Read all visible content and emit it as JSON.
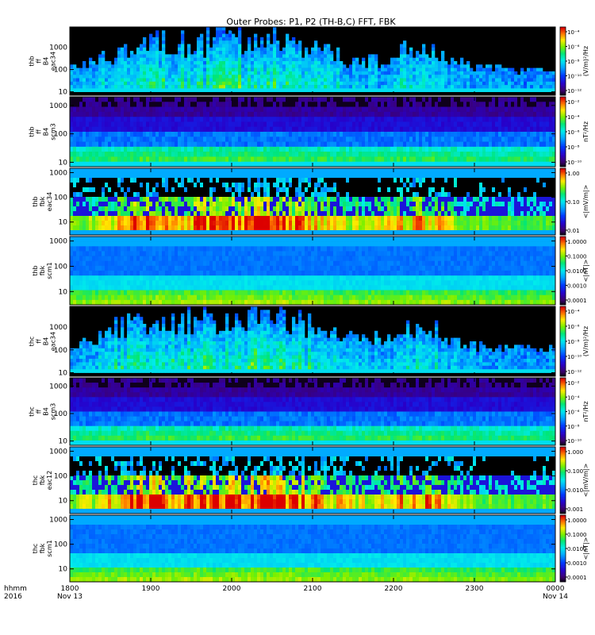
{
  "chart_data": {
    "type": "heatmap",
    "title": "Outer Probes: P1, P2 (TH-B,C) FFT, FBK",
    "x_axis": {
      "range_hhmm": [
        "1800",
        "2400"
      ],
      "tick_labels": [
        "1800",
        "1900",
        "2000",
        "2100",
        "2200",
        "2300",
        "0000"
      ],
      "date_labels": [
        {
          "hhmm": "1800",
          "label": "Nov 13"
        },
        {
          "hhmm": "0000",
          "label": "Nov 14"
        }
      ],
      "corner_label_1": "hhmm",
      "corner_label_2": "2016"
    },
    "panels": [
      {
        "id": "thb-ffp-eac34",
        "ylabel": [
          "thb",
          "ff",
          "B4",
          "eac34"
        ],
        "yticks": [
          "1000",
          "100",
          "10"
        ],
        "yscale": "log",
        "ylim": [
          7,
          8000
        ],
        "cbar_unit": "(V/m)²/Hz",
        "cbar_ticks": [
          "10⁻⁴",
          "10⁻⁶",
          "10⁻⁸",
          "10⁻¹⁰",
          "10⁻¹²"
        ],
        "colormap": "rainbow",
        "pattern": "efft",
        "activity": 0.45
      },
      {
        "id": "thb-ffp-scm3",
        "ylabel": [
          "thb",
          "ff",
          "B4",
          "scm3"
        ],
        "yticks": [
          "1000",
          "100",
          "10"
        ],
        "yscale": "log",
        "ylim": [
          7,
          2000
        ],
        "cbar_unit": "nT²/Hz",
        "cbar_ticks": [
          "10⁻²",
          "10⁻⁴",
          "10⁻⁶",
          "10⁻⁸",
          "10⁻¹⁰"
        ],
        "colormap": "rainbow",
        "pattern": "bfft",
        "activity": 0.3
      },
      {
        "id": "thb-fbk-eac34",
        "ylabel": [
          "thb",
          "fbk",
          "eac34"
        ],
        "yticks": [
          "1000",
          "100",
          "10"
        ],
        "yscale": "log",
        "ylim": [
          3,
          1500
        ],
        "cbar_unit": "<|mV/m|>",
        "cbar_ticks": [
          "1.00",
          "0.10",
          "0.01"
        ],
        "colormap": "rainbow",
        "pattern": "efbk",
        "activity": 0.5
      },
      {
        "id": "thb-fbk-scm1",
        "ylabel": [
          "thb",
          "fbk",
          "scm1"
        ],
        "yticks": [
          "1000",
          "100",
          "10"
        ],
        "yscale": "log",
        "ylim": [
          3,
          1500
        ],
        "cbar_unit": "<|nT|>",
        "cbar_ticks": [
          "1.0000",
          "0.1000",
          "0.0100",
          "0.0010",
          "0.0001"
        ],
        "colormap": "rainbow",
        "pattern": "bfbk",
        "activity": 0.25
      },
      {
        "id": "thc-ffp-eac34",
        "ylabel": [
          "thc",
          "ff",
          "B4",
          "eac34"
        ],
        "yticks": [
          "1000",
          "100",
          "10"
        ],
        "yscale": "log",
        "ylim": [
          7,
          8000
        ],
        "cbar_unit": "(V/m)²/Hz",
        "cbar_ticks": [
          "10⁻⁴",
          "10⁻⁶",
          "10⁻⁸",
          "10⁻¹⁰",
          "10⁻¹²"
        ],
        "colormap": "rainbow",
        "pattern": "efft",
        "activity": 0.5
      },
      {
        "id": "thc-ffp-scm3",
        "ylabel": [
          "thc",
          "ff",
          "B4",
          "scm3"
        ],
        "yticks": [
          "1000",
          "100",
          "10"
        ],
        "yscale": "log",
        "ylim": [
          7,
          2000
        ],
        "cbar_unit": "nT²/Hz",
        "cbar_ticks": [
          "10⁻²",
          "10⁻⁴",
          "10⁻⁶",
          "10⁻⁸",
          "10⁻¹⁰"
        ],
        "colormap": "rainbow",
        "pattern": "bfft",
        "activity": 0.3
      },
      {
        "id": "thc-fbk-eac12",
        "ylabel": [
          "thc",
          "fbk",
          "eac12"
        ],
        "yticks": [
          "1000",
          "100",
          "10"
        ],
        "yscale": "log",
        "ylim": [
          3,
          1500
        ],
        "cbar_unit": "<|mV/m|>",
        "cbar_ticks": [
          "1.000",
          "0.100",
          "0.010",
          "0.001"
        ],
        "colormap": "rainbow",
        "pattern": "efbk",
        "activity": 0.6
      },
      {
        "id": "thc-fbk-scm1",
        "ylabel": [
          "thc",
          "fbk",
          "scm1"
        ],
        "yticks": [
          "1000",
          "100",
          "10"
        ],
        "yscale": "log",
        "ylim": [
          3,
          1500
        ],
        "cbar_unit": "<|nT|>",
        "cbar_ticks": [
          "1.0000",
          "0.1000",
          "0.0100",
          "0.0010",
          "0.0001"
        ],
        "colormap": "rainbow",
        "pattern": "bfbk",
        "activity": 0.25
      }
    ]
  }
}
